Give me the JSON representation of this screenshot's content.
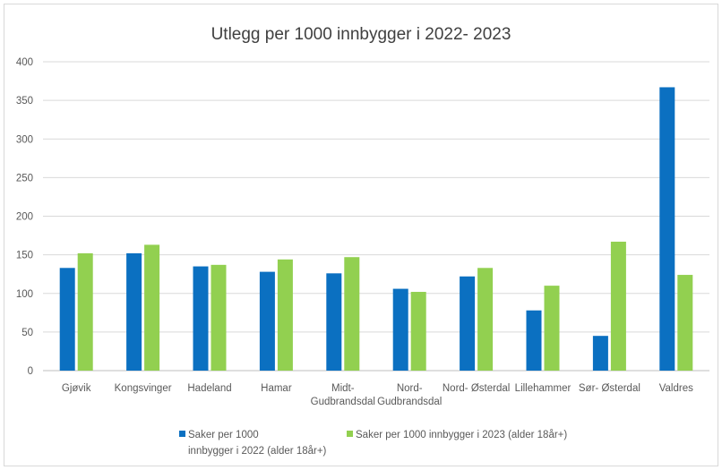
{
  "chart_data": {
    "type": "bar",
    "title": "Utlegg per 1000 innbygger i 2022- 2023",
    "xlabel": "",
    "ylabel": "",
    "ylim": [
      0,
      400
    ],
    "yticks": [
      0,
      50,
      100,
      150,
      200,
      250,
      300,
      350,
      400
    ],
    "grid": true,
    "legend_position": "bottom",
    "categories": [
      [
        "Gjøvik"
      ],
      [
        "Kongsvinger"
      ],
      [
        "Hadeland"
      ],
      [
        "Hamar"
      ],
      [
        "Midt-",
        "Gudbrandsdal"
      ],
      [
        "Nord-",
        "Gudbrandsdal"
      ],
      [
        "Nord- Østerdal"
      ],
      [
        "Lillehammer"
      ],
      [
        "Sør- Østerdal"
      ],
      [
        "Valdres"
      ]
    ],
    "series": [
      {
        "name_lines": [
          "Saker per 1000",
          "innbygger i 2022 (alder 18år+)"
        ],
        "color": "#0b70c1",
        "values": [
          133,
          152,
          135,
          128,
          126,
          106,
          122,
          78,
          45,
          367
        ]
      },
      {
        "name_lines": [
          "Saker per 1000 innbygger i 2023 (alder 18år+)"
        ],
        "color": "#92d050",
        "values": [
          152,
          163,
          137,
          144,
          147,
          102,
          133,
          110,
          167,
          124
        ]
      }
    ]
  }
}
